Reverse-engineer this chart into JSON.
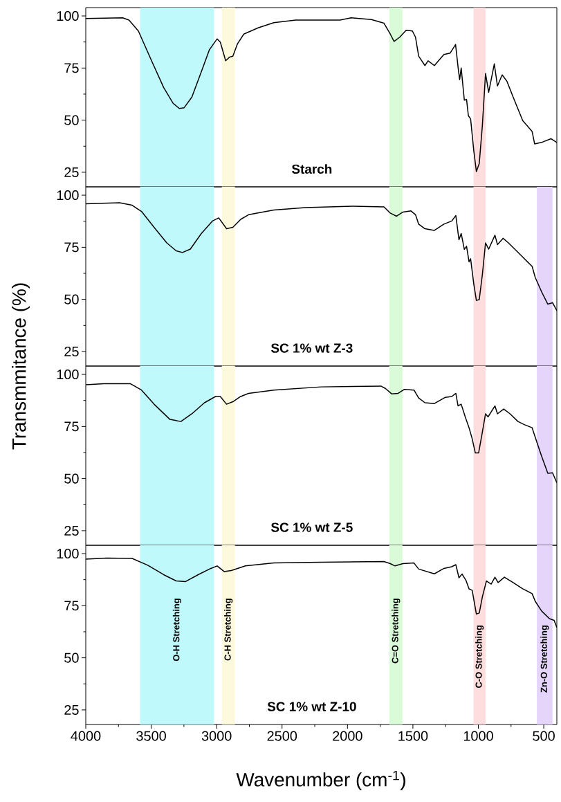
{
  "chart_data": [
    {
      "type": "line",
      "color": "#000000",
      "xlim": [
        4000,
        400
      ],
      "ylim": [
        18,
        104
      ],
      "yticks": [
        25,
        {
          "value": 37.5,
          "label": null
        },
        50,
        {
          "value": 62.5,
          "label": null
        },
        75,
        {
          "value": 87.5,
          "label": null
        },
        100
      ],
      "tick_labels": "y",
      "annotations": [
        "Starch"
      ],
      "bands": [
        {
          "axis": "x",
          "from": 3585,
          "to": 3020,
          "color": "#bff9fb"
        },
        {
          "axis": "x",
          "from": 2960,
          "to": 2860,
          "color": "#fdf9dd"
        },
        {
          "axis": "x",
          "from": 1680,
          "to": 1580,
          "color": "#d9fbd7"
        },
        {
          "axis": "x",
          "from": 1037,
          "to": 945,
          "color": "#fddddd"
        }
      ],
      "x": [
        4000,
        3718,
        3670,
        3598,
        3502,
        3405,
        3333,
        3285,
        3249,
        3189,
        3117,
        3056,
        2996,
        2972,
        2931,
        2900,
        2876,
        2840,
        2792,
        2683,
        2563,
        2395,
        2057,
        1973,
        1817,
        1721,
        1673,
        1644,
        1601,
        1552,
        1504,
        1480,
        1456,
        1408,
        1384,
        1336,
        1263,
        1215,
        1174,
        1155,
        1143,
        1131,
        1107,
        1090,
        1076,
        1059,
        1035,
        1015,
        993,
        969,
        945,
        921,
        878,
        854,
        818,
        782,
        734,
        661,
        589,
        570,
        517,
        445,
        400
      ],
      "values": [
        98.8,
        99.1,
        98,
        92.8,
        79.2,
        65.7,
        58.1,
        55.6,
        55.9,
        61.1,
        73.2,
        83.7,
        89,
        87.5,
        78.5,
        80.3,
        80.7,
        86.7,
        91.3,
        94.3,
        96.8,
        98,
        98,
        99.1,
        98.3,
        96.5,
        91.3,
        87.8,
        89.8,
        93.1,
        92.8,
        89.8,
        80.7,
        76.2,
        78.5,
        76.2,
        81.5,
        82.2,
        86.3,
        75.5,
        69.4,
        75,
        59.6,
        59.9,
        52.1,
        50.6,
        35.5,
        25.3,
        29.2,
        47.6,
        72.4,
        63.4,
        77,
        66.4,
        71.7,
        68.7,
        61.1,
        49.8,
        44.6,
        38.6,
        39.3,
        41.1,
        39.3
      ]
    },
    {
      "type": "line",
      "color": "#000000",
      "xlim": [
        4000,
        400
      ],
      "ylim": [
        18,
        104
      ],
      "yticks": [
        25,
        {
          "value": 37.5,
          "label": null
        },
        50,
        {
          "value": 62.5,
          "label": null
        },
        75,
        {
          "value": 87.5,
          "label": null
        },
        100
      ],
      "tick_labels": "y",
      "annotations": [
        "SC 1% wt Z-3"
      ],
      "ylabel": "Transmmitance (%)",
      "bands": [
        {
          "axis": "x",
          "from": 3585,
          "to": 3020,
          "color": "#bff9fb"
        },
        {
          "axis": "x",
          "from": 2960,
          "to": 2860,
          "color": "#fdf9dd"
        },
        {
          "axis": "x",
          "from": 1680,
          "to": 1580,
          "color": "#d9fbd7"
        },
        {
          "axis": "x",
          "from": 1037,
          "to": 945,
          "color": "#fddddd"
        },
        {
          "axis": "x",
          "from": 553,
          "to": 433,
          "color": "#e6d5fb"
        }
      ],
      "x": [
        4000,
        3742,
        3646,
        3574,
        3478,
        3381,
        3309,
        3261,
        3201,
        3117,
        3032,
        2984,
        2924,
        2876,
        2816,
        2756,
        2563,
        2322,
        1961,
        1721,
        1673,
        1625,
        1576,
        1516,
        1480,
        1456,
        1408,
        1336,
        1263,
        1203,
        1172,
        1148,
        1131,
        1107,
        1090,
        1071,
        1059,
        1035,
        1015,
        993,
        969,
        945,
        921,
        873,
        854,
        811,
        770,
        722,
        661,
        589,
        565,
        517,
        469,
        433,
        400
      ],
      "values": [
        95.9,
        96.4,
        95.2,
        92.2,
        84.6,
        77.1,
        73.3,
        72.5,
        74.1,
        81.6,
        87.6,
        89.1,
        83.9,
        84.6,
        88.4,
        90.6,
        92.9,
        94,
        94.7,
        94.4,
        91.4,
        89.9,
        91.9,
        92.5,
        90.6,
        86.1,
        83.9,
        83.1,
        86.1,
        87.6,
        90.2,
        78.6,
        81.6,
        74,
        75.5,
        68,
        69.5,
        57.5,
        49.5,
        49.9,
        62,
        77.1,
        74.1,
        80.8,
        76.3,
        79.3,
        77.1,
        74.1,
        70.3,
        65.8,
        60.5,
        53.7,
        47.7,
        48.4,
        44.6
      ]
    },
    {
      "type": "line",
      "color": "#000000",
      "xlim": [
        4000,
        400
      ],
      "ylim": [
        18,
        104
      ],
      "yticks": [
        25,
        {
          "value": 37.5,
          "label": null
        },
        50,
        {
          "value": 62.5,
          "label": null
        },
        75,
        {
          "value": 87.5,
          "label": null
        },
        100
      ],
      "tick_labels": "y",
      "annotations": [
        "SC 1% wt Z-5"
      ],
      "bands": [
        {
          "axis": "x",
          "from": 3585,
          "to": 3020,
          "color": "#bff9fb"
        },
        {
          "axis": "x",
          "from": 2960,
          "to": 2860,
          "color": "#fdf9dd"
        },
        {
          "axis": "x",
          "from": 1680,
          "to": 1580,
          "color": "#d9fbd7"
        },
        {
          "axis": "x",
          "from": 1037,
          "to": 945,
          "color": "#fddddd"
        },
        {
          "axis": "x",
          "from": 553,
          "to": 433,
          "color": "#e6d5fb"
        }
      ],
      "x": [
        4000,
        3863,
        3658,
        3574,
        3478,
        3357,
        3273,
        3189,
        3093,
        3008,
        2972,
        2924,
        2876,
        2816,
        2756,
        2563,
        2202,
        1745,
        1709,
        1661,
        1613,
        1565,
        1492,
        1456,
        1408,
        1336,
        1252,
        1203,
        1172,
        1155,
        1131,
        1100,
        1071,
        1047,
        1023,
        998,
        974,
        945,
        926,
        873,
        854,
        806,
        758,
        697,
        649,
        589,
        565,
        517,
        469,
        433,
        400
      ],
      "values": [
        95,
        95.5,
        95.5,
        92.5,
        85.7,
        78.4,
        77.4,
        81.1,
        86.4,
        89.4,
        89.4,
        85.7,
        86.9,
        89.4,
        90.9,
        92.5,
        94,
        94.4,
        93.2,
        90.6,
        90.9,
        92.8,
        92.5,
        88.7,
        86.4,
        86,
        89,
        89.4,
        90.9,
        84.9,
        85.7,
        79.6,
        74.4,
        69.1,
        62.3,
        62.3,
        70.6,
        81.1,
        79.6,
        84.9,
        81.1,
        83.4,
        81.1,
        77.4,
        75.9,
        74.4,
        69.8,
        60.8,
        52.5,
        52.8,
        48
      ]
    },
    {
      "type": "line",
      "color": "#000000",
      "xlim": [
        4000,
        400
      ],
      "ylim": [
        18,
        104
      ],
      "xticks": [
        4000,
        {
          "value": 3750,
          "label": null
        },
        3500,
        {
          "value": 3250,
          "label": null
        },
        3000,
        {
          "value": 2750,
          "label": null
        },
        2500,
        {
          "value": 2250,
          "label": null
        },
        2000,
        {
          "value": 1750,
          "label": null
        },
        1500,
        {
          "value": 1250,
          "label": null
        },
        1000,
        {
          "value": 750,
          "label": null
        },
        500
      ],
      "yticks": [
        25,
        {
          "value": 37.5,
          "label": null
        },
        50,
        {
          "value": 62.5,
          "label": null
        },
        75,
        {
          "value": 87.5,
          "label": null
        },
        100
      ],
      "xlabel": "Wavenumber (cm$^{-1}$)",
      "annotations": [
        "SC 1% wt Z-10"
      ],
      "bands": [
        {
          "axis": "x",
          "from": 3585,
          "to": 3020,
          "color": "#bff9fb",
          "label": "O-H Stretching"
        },
        {
          "axis": "x",
          "from": 2960,
          "to": 2860,
          "color": "#fdf9dd",
          "label": "C-H Stretching"
        },
        {
          "axis": "x",
          "from": 1680,
          "to": 1580,
          "color": "#d9fbd7",
          "label": "C=O Stretching"
        },
        {
          "axis": "x",
          "from": 1037,
          "to": 945,
          "color": "#fddddd",
          "label": "C-O Stretching"
        },
        {
          "axis": "x",
          "from": 553,
          "to": 433,
          "color": "#e6d5fb",
          "label": "Zn-O Stretching"
        }
      ],
      "x": [
        4000,
        3839,
        3646,
        3526,
        3405,
        3309,
        3237,
        3141,
        3044,
        2996,
        2943,
        2888,
        2780,
        2563,
        2202,
        1721,
        1673,
        1637,
        1576,
        1492,
        1456,
        1336,
        1263,
        1203,
        1172,
        1148,
        1124,
        1095,
        1071,
        1047,
        1015,
        993,
        969,
        938,
        902,
        873,
        849,
        801,
        734,
        661,
        589,
        565,
        517,
        457,
        421,
        400
      ],
      "values": [
        97.4,
        97.9,
        97.7,
        94.4,
        89.9,
        86.9,
        86.6,
        89.9,
        92.9,
        94.1,
        91.4,
        91.9,
        94.1,
        95.5,
        95.9,
        96.2,
        95.2,
        94.1,
        95.2,
        95.5,
        92.6,
        90.3,
        92.9,
        93.7,
        94.7,
        88.4,
        90.2,
        87.2,
        83.1,
        82.4,
        71,
        71.5,
        79.3,
        86.9,
        85.4,
        88.7,
        86.1,
        88.7,
        86.1,
        83.1,
        80.8,
        77.1,
        72.5,
        68.8,
        68,
        64.6
      ]
    }
  ]
}
